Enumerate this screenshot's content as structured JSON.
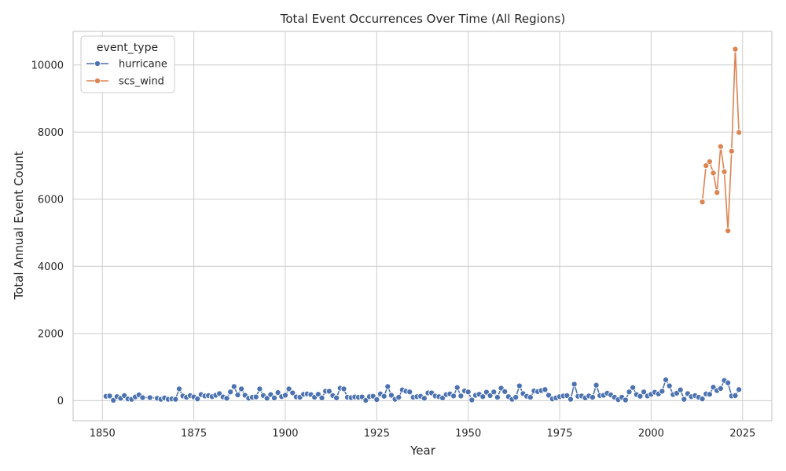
{
  "chart_data": {
    "type": "line",
    "title": "Total Event Occurrences Over Time (All Regions)",
    "xlabel": "Year",
    "ylabel": "Total Annual Event Count",
    "xlim": [
      1842,
      2033
    ],
    "ylim": [
      -600,
      11000
    ],
    "xticks": [
      1850,
      1875,
      1900,
      1925,
      1950,
      1975,
      2000,
      2025
    ],
    "yticks": [
      0,
      2000,
      4000,
      6000,
      8000,
      10000
    ],
    "grid": true,
    "legend": {
      "title": "event_type",
      "placement": "top-left"
    },
    "series": [
      {
        "name": "hurricane",
        "color": "#4c72b0",
        "x": [
          1851,
          1852,
          1853,
          1854,
          1855,
          1856,
          1857,
          1858,
          1859,
          1860,
          1861,
          1863,
          1865,
          1866,
          1867,
          1868,
          1869,
          1870,
          1871,
          1872,
          1873,
          1874,
          1875,
          1876,
          1877,
          1878,
          1879,
          1880,
          1881,
          1882,
          1883,
          1884,
          1885,
          1886,
          1887,
          1888,
          1889,
          1890,
          1891,
          1892,
          1893,
          1894,
          1895,
          1896,
          1897,
          1898,
          1899,
          1900,
          1901,
          1902,
          1903,
          1904,
          1905,
          1906,
          1907,
          1908,
          1909,
          1910,
          1911,
          1912,
          1913,
          1914,
          1915,
          1916,
          1917,
          1918,
          1919,
          1920,
          1921,
          1922,
          1923,
          1924,
          1925,
          1926,
          1927,
          1928,
          1929,
          1930,
          1931,
          1932,
          1933,
          1934,
          1935,
          1936,
          1937,
          1938,
          1939,
          1940,
          1941,
          1942,
          1943,
          1944,
          1945,
          1946,
          1947,
          1948,
          1949,
          1950,
          1951,
          1952,
          1953,
          1954,
          1955,
          1956,
          1957,
          1958,
          1959,
          1960,
          1961,
          1962,
          1963,
          1964,
          1965,
          1966,
          1967,
          1968,
          1969,
          1970,
          1971,
          1972,
          1973,
          1974,
          1975,
          1976,
          1977,
          1978,
          1979,
          1980,
          1981,
          1982,
          1983,
          1984,
          1985,
          1986,
          1987,
          1988,
          1989,
          1990,
          1991,
          1992,
          1993,
          1994,
          1995,
          1996,
          1997,
          1998,
          1999,
          2000,
          2001,
          2002,
          2003,
          2004,
          2005,
          2006,
          2007,
          2008,
          2009,
          2010,
          2011,
          2012,
          2013,
          2014,
          2015,
          2016,
          2017,
          2018,
          2019,
          2020,
          2021,
          2022,
          2023,
          2024
        ],
        "values": [
          130,
          140,
          10,
          120,
          70,
          150,
          50,
          40,
          110,
          170,
          90,
          90,
          70,
          40,
          80,
          40,
          50,
          40,
          350,
          140,
          100,
          150,
          110,
          50,
          180,
          140,
          150,
          120,
          160,
          210,
          110,
          70,
          260,
          420,
          170,
          350,
          160,
          70,
          100,
          110,
          350,
          150,
          70,
          180,
          80,
          240,
          120,
          160,
          350,
          230,
          110,
          100,
          190,
          200,
          180,
          100,
          190,
          80,
          280,
          280,
          150,
          80,
          370,
          350,
          100,
          90,
          110,
          100,
          110,
          10,
          120,
          130,
          30,
          200,
          130,
          420,
          160,
          40,
          100,
          320,
          280,
          260,
          100,
          120,
          130,
          70,
          230,
          230,
          140,
          120,
          80,
          180,
          200,
          140,
          390,
          140,
          290,
          260,
          20,
          160,
          190,
          120,
          250,
          150,
          260,
          100,
          370,
          270,
          120,
          40,
          100,
          440,
          210,
          130,
          100,
          290,
          270,
          300,
          330,
          160,
          50,
          80,
          120,
          140,
          150,
          40,
          490,
          130,
          140,
          80,
          140,
          100,
          460,
          150,
          160,
          220,
          170,
          100,
          30,
          100,
          20,
          260,
          390,
          180,
          130,
          260,
          140,
          190,
          250,
          200,
          280,
          620,
          440,
          180,
          220,
          320,
          40,
          210,
          120,
          150,
          100,
          50,
          200,
          190,
          400,
          300,
          360,
          600,
          530,
          140,
          150,
          330
        ]
      },
      {
        "name": "scs_wind",
        "color": "#dd8452",
        "x": [
          2014,
          2015,
          2016,
          2017,
          2018,
          2019,
          2020,
          2021,
          2022,
          2023,
          2024
        ],
        "values": [
          5920,
          7000,
          7120,
          6780,
          6200,
          7570,
          6820,
          5060,
          7430,
          10470,
          7990
        ]
      }
    ]
  }
}
